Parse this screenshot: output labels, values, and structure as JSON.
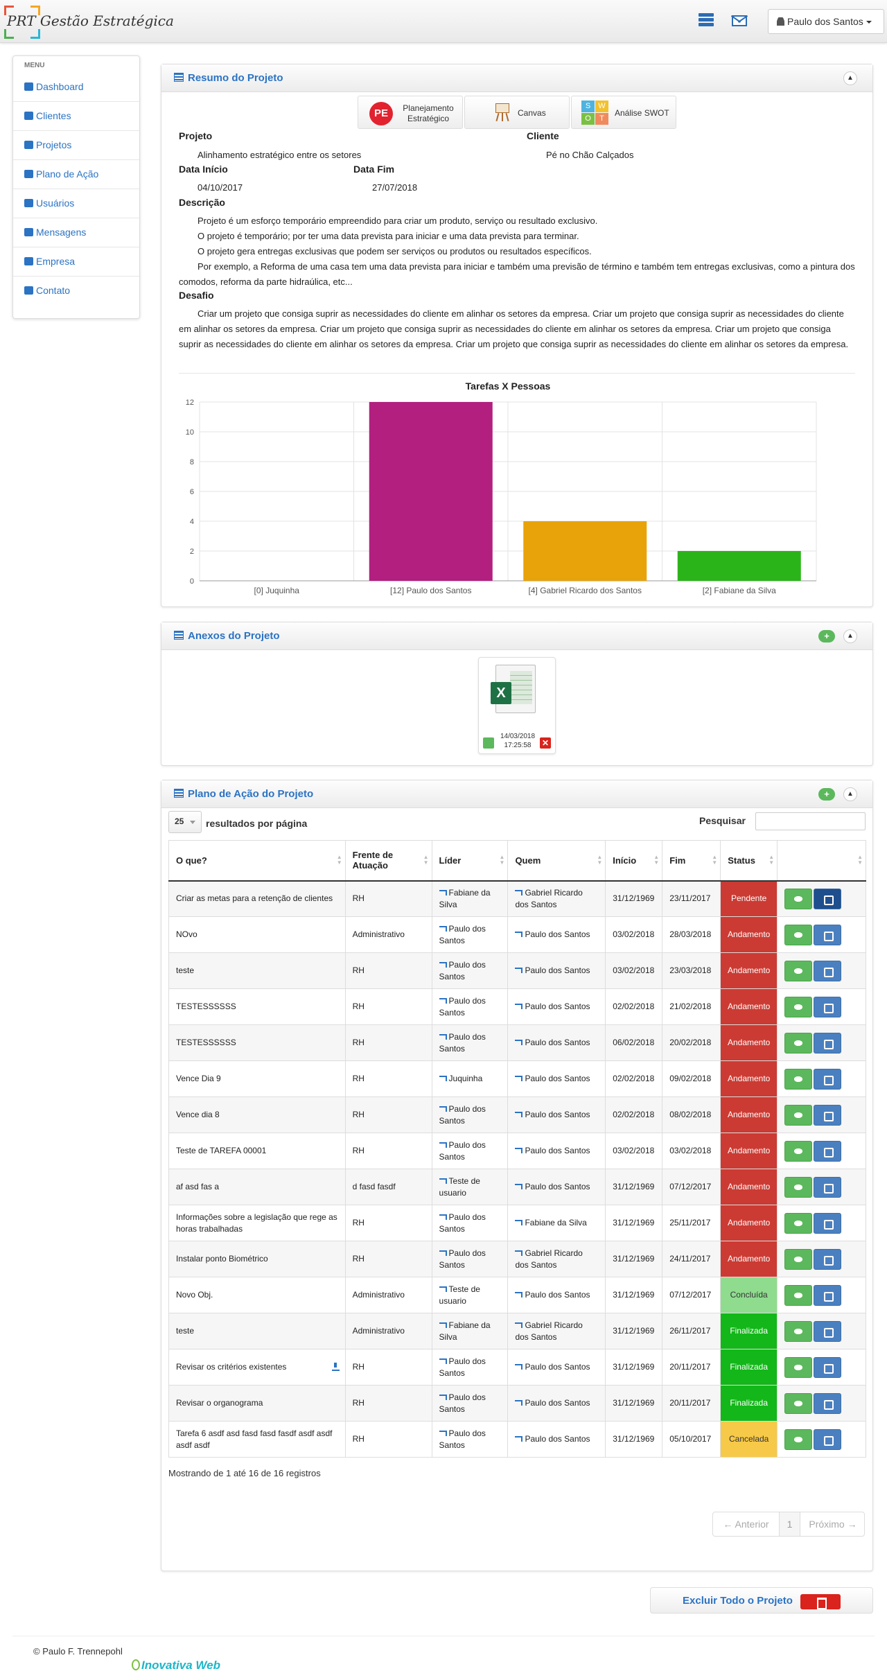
{
  "app": {
    "logo_short": "PRT",
    "logo_title": "Gestão Estratégica",
    "user": "Paulo dos Santos"
  },
  "menu": {
    "label": "MENU",
    "items": [
      {
        "label": "Dashboard",
        "icon": "home-icon"
      },
      {
        "label": "Clientes",
        "icon": "user-icon"
      },
      {
        "label": "Projetos",
        "icon": "calendar-icon"
      },
      {
        "label": "Plano de Ação",
        "icon": "list-icon"
      },
      {
        "label": "Usuários",
        "icon": "user-icon"
      },
      {
        "label": "Mensagens",
        "icon": "envelope-icon"
      },
      {
        "label": "Empresa",
        "icon": "building-icon"
      },
      {
        "label": "Contato",
        "icon": "phone-icon"
      }
    ]
  },
  "resumo": {
    "title": "Resumo do Projeto",
    "tools": [
      {
        "label": "Planejamento Estratégico",
        "badge": "PE"
      },
      {
        "label": "Canvas"
      },
      {
        "label": "Análise SWOT",
        "letters": [
          "S",
          "W",
          "O",
          "T"
        ]
      }
    ],
    "projeto_label": "Projeto",
    "projeto": "Alinhamento estratégico entre os setores",
    "cliente_label": "Cliente",
    "cliente": "Pé no Chão Calçados",
    "inicio_label": "Data Início",
    "inicio": "04/10/2017",
    "fim_label": "Data Fim",
    "fim": "27/07/2018",
    "descricao_label": "Descrição",
    "descricao": [
      "Projeto é um esforço temporário empreendido para criar um produto, serviço ou resultado exclusivo.",
      "O projeto é temporário; por ter uma data prevista para iniciar e uma data prevista para terminar.",
      "O projeto gera entregas exclusivas que podem ser serviços ou produtos ou resultados específicos.",
      "Por exemplo, a Reforma de uma casa tem uma data prevista para iniciar e também uma previsão de término e também tem entregas exclusivas, como a pintura dos comodos, reforma da parte hidraúlica, etc..."
    ],
    "desafio_label": "Desafio",
    "desafio": "Criar um projeto que consiga suprir as necessidades do cliente em alinhar os setores da empresa. Criar um projeto que consiga suprir as necessidades do cliente em alinhar os setores da empresa. Criar um projeto que consiga suprir as necessidades do cliente em alinhar os setores da empresa. Criar um projeto que consiga suprir as necessidades do cliente em alinhar os setores da empresa. Criar um projeto que consiga suprir as necessidades do cliente em alinhar os setores da empresa."
  },
  "chart_data": {
    "type": "bar",
    "title": "Tarefas X Pessoas",
    "categories": [
      "[0] Juquinha",
      "[12] Paulo dos Santos",
      "[4] Gabriel Ricardo dos Santos",
      "[2] Fabiane da Silva"
    ],
    "values": [
      0,
      12,
      4,
      2
    ],
    "colors": [
      "#b5b5b5",
      "#b21f7f",
      "#e8a30b",
      "#2bb419"
    ],
    "ylim": [
      0,
      12
    ],
    "yticks": [
      0,
      2,
      4,
      6,
      8,
      10,
      12
    ],
    "grid": true,
    "xlabel": "",
    "ylabel": ""
  },
  "anexos": {
    "title": "Anexos do Projeto",
    "file": {
      "date": "14/03/2018",
      "time": "17:25:58",
      "badge": "X"
    }
  },
  "plano": {
    "title": "Plano de Ação do Projeto",
    "page_size": "25",
    "page_size_label": "resultados por página",
    "search_label": "Pesquisar",
    "columns": [
      "O que?",
      "Frente de Atuação",
      "Líder",
      "Quem",
      "Início",
      "Fim",
      "Status",
      ""
    ],
    "rows": [
      {
        "oque": "Criar as metas para a retenção de clientes",
        "frente": "RH",
        "lider": "Fabiane da Silva",
        "quem": "Gabriel Ricardo dos Santos",
        "inicio": "31/12/1969",
        "fim": "23/11/2017",
        "status": "Pendente",
        "color": "#cb3b33",
        "download": false
      },
      {
        "oque": "NOvo",
        "frente": "Administrativo",
        "lider": "Paulo dos Santos",
        "quem": "Paulo dos Santos",
        "inicio": "03/02/2018",
        "fim": "28/03/2018",
        "status": "Andamento",
        "color": "#cb3b33",
        "download": false
      },
      {
        "oque": "teste",
        "frente": "RH",
        "lider": "Paulo dos Santos",
        "quem": "Paulo dos Santos",
        "inicio": "03/02/2018",
        "fim": "23/03/2018",
        "status": "Andamento",
        "color": "#cb3b33",
        "download": false
      },
      {
        "oque": "TESTESSSSSS",
        "frente": "RH",
        "lider": "Paulo dos Santos",
        "quem": "Paulo dos Santos",
        "inicio": "02/02/2018",
        "fim": "21/02/2018",
        "status": "Andamento",
        "color": "#cb3b33",
        "download": false
      },
      {
        "oque": "TESTESSSSSS",
        "frente": "RH",
        "lider": "Paulo dos Santos",
        "quem": "Paulo dos Santos",
        "inicio": "06/02/2018",
        "fim": "20/02/2018",
        "status": "Andamento",
        "color": "#cb3b33",
        "download": false
      },
      {
        "oque": "Vence Dia 9",
        "frente": "RH",
        "lider": "Juquinha",
        "quem": "Paulo dos Santos",
        "inicio": "02/02/2018",
        "fim": "09/02/2018",
        "status": "Andamento",
        "color": "#cb3b33",
        "download": false
      },
      {
        "oque": "Vence dia 8",
        "frente": "RH",
        "lider": "Paulo dos Santos",
        "quem": "Paulo dos Santos",
        "inicio": "02/02/2018",
        "fim": "08/02/2018",
        "status": "Andamento",
        "color": "#cb3b33",
        "download": false
      },
      {
        "oque": "Teste de TAREFA 00001",
        "frente": "RH",
        "lider": "Paulo dos Santos",
        "quem": "Paulo dos Santos",
        "inicio": "03/02/2018",
        "fim": "03/02/2018",
        "status": "Andamento",
        "color": "#cb3b33",
        "download": false
      },
      {
        "oque": "af asd fas a",
        "frente": "d fasd fasdf",
        "lider": "Teste de usuario",
        "quem": "Paulo dos Santos",
        "inicio": "31/12/1969",
        "fim": "07/12/2017",
        "status": "Andamento",
        "color": "#cb3b33",
        "download": false
      },
      {
        "oque": "Informações sobre a legislação que rege as horas trabalhadas",
        "frente": "RH",
        "lider": "Paulo dos Santos",
        "quem": "Fabiane da Silva",
        "inicio": "31/12/1969",
        "fim": "25/11/2017",
        "status": "Andamento",
        "color": "#cb3b33",
        "download": false
      },
      {
        "oque": "Instalar ponto Biométrico",
        "frente": "RH",
        "lider": "Paulo dos Santos",
        "quem": "Gabriel Ricardo dos Santos",
        "inicio": "31/12/1969",
        "fim": "24/11/2017",
        "status": "Andamento",
        "color": "#cb3b33",
        "download": false
      },
      {
        "oque": "Novo Obj.",
        "frente": "Administrativo",
        "lider": "Teste de usuario",
        "quem": "Paulo dos Santos",
        "inicio": "31/12/1969",
        "fim": "07/12/2017",
        "status": "Concluída",
        "color": "#8fdc8f",
        "download": false
      },
      {
        "oque": "teste",
        "frente": "Administrativo",
        "lider": "Fabiane da Silva",
        "quem": "Gabriel Ricardo dos Santos",
        "inicio": "31/12/1969",
        "fim": "26/11/2017",
        "status": "Finalizada",
        "color": "#13b719",
        "download": false
      },
      {
        "oque": "Revisar os critérios existentes",
        "frente": "RH",
        "lider": "Paulo dos Santos",
        "quem": "Paulo dos Santos",
        "inicio": "31/12/1969",
        "fim": "20/11/2017",
        "status": "Finalizada",
        "color": "#13b719",
        "download": true
      },
      {
        "oque": "Revisar o organograma",
        "frente": "RH",
        "lider": "Paulo dos Santos",
        "quem": "Paulo dos Santos",
        "inicio": "31/12/1969",
        "fim": "20/11/2017",
        "status": "Finalizada",
        "color": "#13b719",
        "download": false
      },
      {
        "oque": "Tarefa 6 asdf asd fasd fasd fasdf asdf asdf asdf asdf",
        "frente": "RH",
        "lider": "Paulo dos Santos",
        "quem": "Paulo dos Santos",
        "inicio": "31/12/1969",
        "fim": "05/10/2017",
        "status": "Cancelada",
        "color": "#f7c948",
        "download": false
      }
    ],
    "info": "Mostrando de 1 até 16 de 16 registros",
    "prev": "← Anterior",
    "page": "1",
    "next": "Próximo →"
  },
  "delete_label": "Excluir Todo o Projeto",
  "footer": {
    "copyright": "© Paulo F. Trennepohl",
    "brand": "Inovativa Web"
  }
}
